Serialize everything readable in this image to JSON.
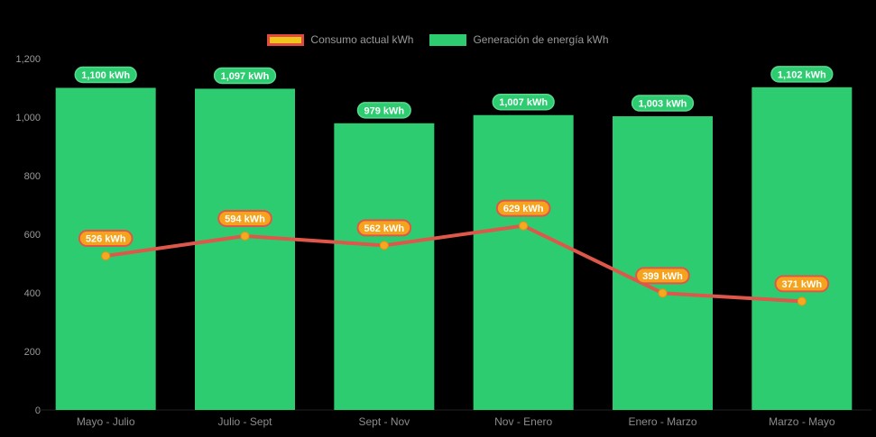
{
  "chart_data": {
    "type": "bar+line",
    "title": "",
    "categories": [
      "Mayo - Julio",
      "Julio - Sept",
      "Sept - Nov",
      "Nov - Enero",
      "Enero - Marzo",
      "Marzo - Mayo"
    ],
    "series": [
      {
        "name": "Consumo actual kWh",
        "type": "line",
        "values": [
          526,
          594,
          562,
          629,
          399,
          371
        ],
        "point_labels": [
          "526 kWh",
          "594 kWh",
          "562 kWh",
          "629 kWh",
          "399 kWh",
          "371 kWh"
        ],
        "line_color": "#DE574B",
        "marker_color": "#F6A723",
        "marker_stroke": "#E8920E",
        "label_fill": "#F5A31C",
        "label_border": "#DE574B",
        "legend_swatch_fill": "#EFC41C",
        "legend_swatch_border": "#DF4B3C"
      },
      {
        "name": "Generación de energía kWh",
        "type": "bar",
        "values": [
          1100,
          1097,
          979,
          1007,
          1003,
          1102
        ],
        "point_labels": [
          "1,100 kWh",
          "1,097 kWh",
          "979 kWh",
          "1,007 kWh",
          "1,003 kWh",
          "1,102 kWh"
        ],
        "bar_color": "#2ECC71",
        "label_fill": "#2ECC71",
        "label_border": "#57D98E",
        "legend_swatch_fill": "#2ECC71",
        "legend_swatch_border": "#2ECC71"
      }
    ],
    "ylim": [
      0,
      1200
    ],
    "y_ticks": [
      {
        "value": 0,
        "label": "0"
      },
      {
        "value": 200,
        "label": "200"
      },
      {
        "value": 400,
        "label": "400"
      },
      {
        "value": 600,
        "label": "600"
      },
      {
        "value": 800,
        "label": "800"
      },
      {
        "value": 1000,
        "label": "1,000"
      },
      {
        "value": 1200,
        "label": "1,200"
      }
    ],
    "grid": false,
    "legend_position": "top",
    "background_color": "#000000",
    "axis_text_color": "#999999",
    "label_text_color": "#FFFFFF"
  }
}
